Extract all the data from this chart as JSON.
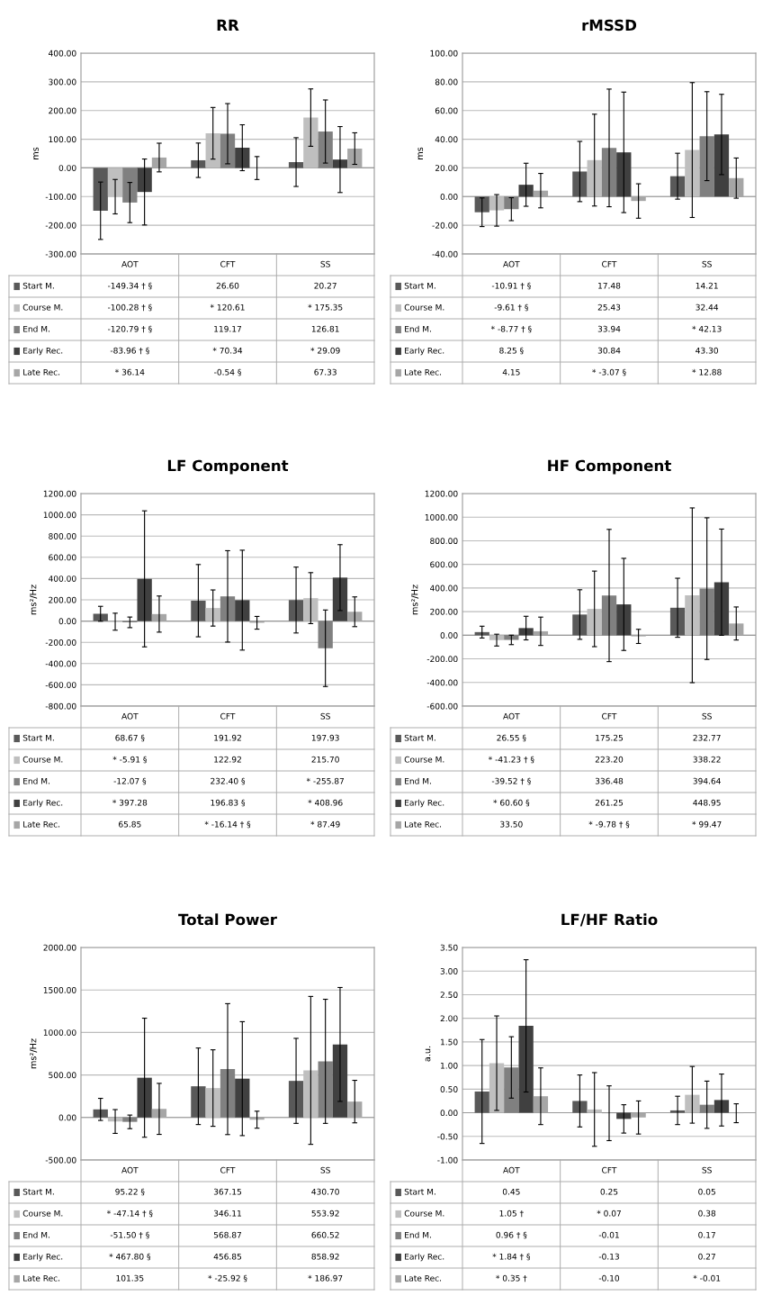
{
  "chart_data": [
    {
      "type": "bar",
      "legend": "bottom left",
      "title": "RR",
      "ylabel": "ms",
      "categories": [
        "AOT",
        "CFT",
        "SS"
      ],
      "grid": "y",
      "ylim": [
        -300,
        400
      ],
      "yticks": [
        {
          "value": -300,
          "label": "-300.00"
        },
        {
          "value": -200,
          "label": "-200.00"
        },
        {
          "value": -100,
          "label": "-100.00"
        },
        {
          "value": 0,
          "label": "0.00"
        },
        {
          "value": 100,
          "label": "100.00"
        },
        {
          "value": 200,
          "label": "200.00"
        },
        {
          "value": 300,
          "label": "300.00"
        },
        {
          "value": 400,
          "label": "400.00"
        }
      ],
      "series": [
        {
          "name": "Start M.",
          "color": "#595959",
          "values": [
            -149.34,
            26.6,
            20.27
          ],
          "errors": [
            100,
            60,
            85
          ],
          "value_labels": [
            "-149.34 † §",
            "26.60",
            "20.27"
          ]
        },
        {
          "name": "Course M.",
          "color": "#bfbfbf",
          "values": [
            -100.28,
            120.61,
            175.35
          ],
          "errors": [
            60,
            90,
            100
          ],
          "value_labels": [
            "-100.28 † §",
            "* 120.61",
            "* 175.35"
          ]
        },
        {
          "name": "End M.",
          "color": "#808080",
          "values": [
            -120.79,
            119.17,
            126.81
          ],
          "errors": [
            70,
            105,
            110
          ],
          "value_labels": [
            "-120.79 † §",
            "119.17",
            "126.81"
          ]
        },
        {
          "name": "Early Rec.",
          "color": "#404040",
          "values": [
            -83.96,
            70.34,
            29.09
          ],
          "errors": [
            115,
            80,
            115
          ],
          "value_labels": [
            "-83.96 † §",
            "* 70.34",
            "* 29.09"
          ]
        },
        {
          "name": "Late Rec.",
          "color": "#a6a6a6",
          "values": [
            36.14,
            -0.54,
            67.33
          ],
          "errors": [
            50,
            40,
            55
          ],
          "value_labels": [
            "* 36.14",
            "-0.54 §",
            "67.33"
          ]
        }
      ]
    },
    {
      "type": "bar",
      "legend": "bottom left",
      "title": "rMSSD",
      "ylabel": "ms",
      "categories": [
        "AOT",
        "CFT",
        "SS"
      ],
      "grid": "y",
      "ylim": [
        -40,
        100
      ],
      "yticks": [
        {
          "value": -40,
          "label": "-40.00"
        },
        {
          "value": -20,
          "label": "-20.00"
        },
        {
          "value": 0,
          "label": "0.00"
        },
        {
          "value": 20,
          "label": "20.00"
        },
        {
          "value": 40,
          "label": "40.00"
        },
        {
          "value": 60,
          "label": "60.00"
        },
        {
          "value": 80,
          "label": "80.00"
        },
        {
          "value": 100,
          "label": "100.00"
        }
      ],
      "series": [
        {
          "name": "Start M.",
          "color": "#595959",
          "values": [
            -10.91,
            17.48,
            14.21
          ],
          "errors": [
            10,
            21,
            16
          ],
          "value_labels": [
            "-10.91 † §",
            "17.48",
            "14.21"
          ]
        },
        {
          "name": "Course M.",
          "color": "#bfbfbf",
          "values": [
            -9.61,
            25.43,
            32.44
          ],
          "errors": [
            11,
            32,
            47
          ],
          "value_labels": [
            "-9.61 † §",
            "25.43",
            "32.44"
          ]
        },
        {
          "name": "End M.",
          "color": "#808080",
          "values": [
            -8.77,
            33.94,
            42.13
          ],
          "errors": [
            8,
            41,
            31
          ],
          "value_labels": [
            "* -8.77 † §",
            "33.94",
            "* 42.13"
          ]
        },
        {
          "name": "Early Rec.",
          "color": "#404040",
          "values": [
            8.25,
            30.84,
            43.3
          ],
          "errors": [
            15,
            42,
            28
          ],
          "value_labels": [
            "8.25 §",
            "30.84",
            "43.30"
          ]
        },
        {
          "name": "Late Rec.",
          "color": "#a6a6a6",
          "values": [
            4.15,
            -3.07,
            12.88
          ],
          "errors": [
            12,
            12,
            14
          ],
          "value_labels": [
            "4.15",
            "* -3.07 §",
            "* 12.88"
          ]
        }
      ]
    },
    {
      "type": "bar",
      "legend": "bottom left",
      "title": "LF Component",
      "ylabel": "ms²/Hz",
      "categories": [
        "AOT",
        "CFT",
        "SS"
      ],
      "grid": "y",
      "ylim": [
        -800,
        1200
      ],
      "yticks": [
        {
          "value": -800,
          "label": "-800.00"
        },
        {
          "value": -600,
          "label": "-600.00"
        },
        {
          "value": -400,
          "label": "-400.00"
        },
        {
          "value": -200,
          "label": "-200.00"
        },
        {
          "value": 0,
          "label": "0.00"
        },
        {
          "value": 200,
          "label": "200.00"
        },
        {
          "value": 400,
          "label": "400.00"
        },
        {
          "value": 600,
          "label": "600.00"
        },
        {
          "value": 800,
          "label": "800.00"
        },
        {
          "value": 1000,
          "label": "1000.00"
        },
        {
          "value": 1200,
          "label": "1200.00"
        }
      ],
      "series": [
        {
          "name": "Start M.",
          "color": "#595959",
          "values": [
            68.67,
            191.92,
            197.93
          ],
          "errors": [
            70,
            340,
            310
          ],
          "value_labels": [
            "68.67 §",
            "191.92",
            "197.93"
          ]
        },
        {
          "name": "Course M.",
          "color": "#bfbfbf",
          "values": [
            -5.91,
            122.92,
            215.7
          ],
          "errors": [
            80,
            170,
            240
          ],
          "value_labels": [
            "* -5.91 §",
            "122.92",
            "215.70"
          ]
        },
        {
          "name": "End M.",
          "color": "#808080",
          "values": [
            -12.07,
            232.4,
            -255.87
          ],
          "errors": [
            50,
            430,
            360
          ],
          "value_labels": [
            "-12.07 §",
            "232.40 §",
            "* -255.87"
          ]
        },
        {
          "name": "Early Rec.",
          "color": "#404040",
          "values": [
            397.28,
            196.83,
            408.96
          ],
          "errors": [
            640,
            470,
            310
          ],
          "value_labels": [
            "* 397.28",
            "196.83 §",
            "* 408.96"
          ]
        },
        {
          "name": "Late Rec.",
          "color": "#a6a6a6",
          "values": [
            65.85,
            -16.14,
            87.49
          ],
          "errors": [
            170,
            60,
            140
          ],
          "value_labels": [
            "65.85",
            "* -16.14 † §",
            "* 87.49"
          ]
        }
      ]
    },
    {
      "type": "bar",
      "legend": "bottom left",
      "title": "HF Component",
      "ylabel": "ms²/Hz",
      "categories": [
        "AOT",
        "CFT",
        "SS"
      ],
      "grid": "y",
      "ylim": [
        -600,
        1200
      ],
      "yticks": [
        {
          "value": -600,
          "label": "-600.00"
        },
        {
          "value": -400,
          "label": "-400.00"
        },
        {
          "value": -200,
          "label": "-200.00"
        },
        {
          "value": 0,
          "label": "0.00"
        },
        {
          "value": 200,
          "label": "200.00"
        },
        {
          "value": 400,
          "label": "400.00"
        },
        {
          "value": 600,
          "label": "600.00"
        },
        {
          "value": 800,
          "label": "800.00"
        },
        {
          "value": 1000,
          "label": "1000.00"
        },
        {
          "value": 1200,
          "label": "1200.00"
        }
      ],
      "series": [
        {
          "name": "Start M.",
          "color": "#595959",
          "values": [
            26.55,
            175.25,
            232.77
          ],
          "errors": [
            50,
            210,
            250
          ],
          "value_labels": [
            "26.55 §",
            "175.25",
            "232.77"
          ]
        },
        {
          "name": "Course M.",
          "color": "#bfbfbf",
          "values": [
            -41.23,
            223.2,
            338.22
          ],
          "errors": [
            50,
            320,
            740
          ],
          "value_labels": [
            "* -41.23 † §",
            "223.20",
            "338.22"
          ]
        },
        {
          "name": "End M.",
          "color": "#808080",
          "values": [
            -39.52,
            336.48,
            394.64
          ],
          "errors": [
            40,
            560,
            600
          ],
          "value_labels": [
            "-39.52 † §",
            "336.48",
            "394.64"
          ]
        },
        {
          "name": "Early Rec.",
          "color": "#404040",
          "values": [
            60.6,
            261.25,
            448.95
          ],
          "errors": [
            100,
            390,
            450
          ],
          "value_labels": [
            "* 60.60 §",
            "261.25",
            "448.95"
          ]
        },
        {
          "name": "Late Rec.",
          "color": "#a6a6a6",
          "values": [
            33.5,
            -9.78,
            99.47
          ],
          "errors": [
            120,
            60,
            140
          ],
          "value_labels": [
            "33.50",
            "* -9.78 † §",
            "* 99.47"
          ]
        }
      ]
    },
    {
      "type": "bar",
      "legend": "bottom left",
      "title": "Total Power",
      "ylabel": "ms²/Hz",
      "categories": [
        "AOT",
        "CFT",
        "SS"
      ],
      "grid": "y",
      "ylim": [
        -500,
        2000
      ],
      "yticks": [
        {
          "value": -500,
          "label": "-500.00"
        },
        {
          "value": 0,
          "label": "0.00"
        },
        {
          "value": 500,
          "label": "500.00"
        },
        {
          "value": 1000,
          "label": "1000.00"
        },
        {
          "value": 1500,
          "label": "1500.00"
        },
        {
          "value": 2000,
          "label": "2000.00"
        }
      ],
      "series": [
        {
          "name": "Start M.",
          "color": "#595959",
          "values": [
            95.22,
            367.15,
            430.7
          ],
          "errors": [
            130,
            450,
            500
          ],
          "value_labels": [
            "95.22 §",
            "367.15",
            "430.70"
          ]
        },
        {
          "name": "Course M.",
          "color": "#bfbfbf",
          "values": [
            -47.14,
            346.11,
            553.92
          ],
          "errors": [
            140,
            450,
            870
          ],
          "value_labels": [
            "* -47.14 † §",
            "346.11",
            "553.92"
          ]
        },
        {
          "name": "End M.",
          "color": "#808080",
          "values": [
            -51.5,
            568.87,
            660.52
          ],
          "errors": [
            80,
            770,
            730
          ],
          "value_labels": [
            "-51.50 † §",
            "568.87",
            "660.52"
          ]
        },
        {
          "name": "Early Rec.",
          "color": "#404040",
          "values": [
            467.8,
            456.85,
            858.92
          ],
          "errors": [
            700,
            670,
            670
          ],
          "value_labels": [
            "* 467.80 §",
            "456.85",
            "858.92"
          ]
        },
        {
          "name": "Late Rec.",
          "color": "#a6a6a6",
          "values": [
            101.35,
            -25.92,
            186.97
          ],
          "errors": [
            300,
            100,
            250
          ],
          "value_labels": [
            "101.35",
            "* -25.92 §",
            "* 186.97"
          ]
        }
      ]
    },
    {
      "type": "bar",
      "legend": "bottom left",
      "title": "LF/HF Ratio",
      "ylabel": "a.u.",
      "categories": [
        "AOT",
        "CFT",
        "SS"
      ],
      "grid": "y",
      "ylim": [
        -1,
        3.5
      ],
      "yticks": [
        {
          "value": -1,
          "label": "-1.00"
        },
        {
          "value": -0.5,
          "label": "-0.50"
        },
        {
          "value": 0,
          "label": "0.00"
        },
        {
          "value": 0.5,
          "label": "0.50"
        },
        {
          "value": 1,
          "label": "1.00"
        },
        {
          "value": 1.5,
          "label": "1.50"
        },
        {
          "value": 2,
          "label": "2.00"
        },
        {
          "value": 2.5,
          "label": "2.50"
        },
        {
          "value": 3,
          "label": "3.00"
        },
        {
          "value": 3.5,
          "label": "3.50"
        }
      ],
      "series": [
        {
          "name": "Start M.",
          "color": "#595959",
          "values": [
            0.45,
            0.25,
            0.05
          ],
          "errors": [
            1.1,
            0.55,
            0.3
          ],
          "value_labels": [
            "0.45",
            "0.25",
            "0.05"
          ]
        },
        {
          "name": "Course M.",
          "color": "#bfbfbf",
          "values": [
            1.05,
            0.07,
            0.38
          ],
          "errors": [
            1.0,
            0.78,
            0.6
          ],
          "value_labels": [
            "1.05 †",
            "* 0.07",
            "0.38"
          ]
        },
        {
          "name": "End M.",
          "color": "#808080",
          "values": [
            0.96,
            -0.01,
            0.17
          ],
          "errors": [
            0.65,
            0.58,
            0.5
          ],
          "value_labels": [
            "0.96 † §",
            "-0.01",
            "0.17"
          ]
        },
        {
          "name": "Early Rec.",
          "color": "#404040",
          "values": [
            1.84,
            -0.13,
            0.27
          ],
          "errors": [
            1.4,
            0.3,
            0.55
          ],
          "value_labels": [
            "* 1.84 † §",
            "-0.13",
            "0.27"
          ]
        },
        {
          "name": "Late Rec.",
          "color": "#a6a6a6",
          "values": [
            0.35,
            -0.1,
            -0.01
          ],
          "errors": [
            0.6,
            0.35,
            0.2
          ],
          "value_labels": [
            "* 0.35 †",
            "-0.10",
            "* -0.01"
          ]
        }
      ]
    }
  ]
}
